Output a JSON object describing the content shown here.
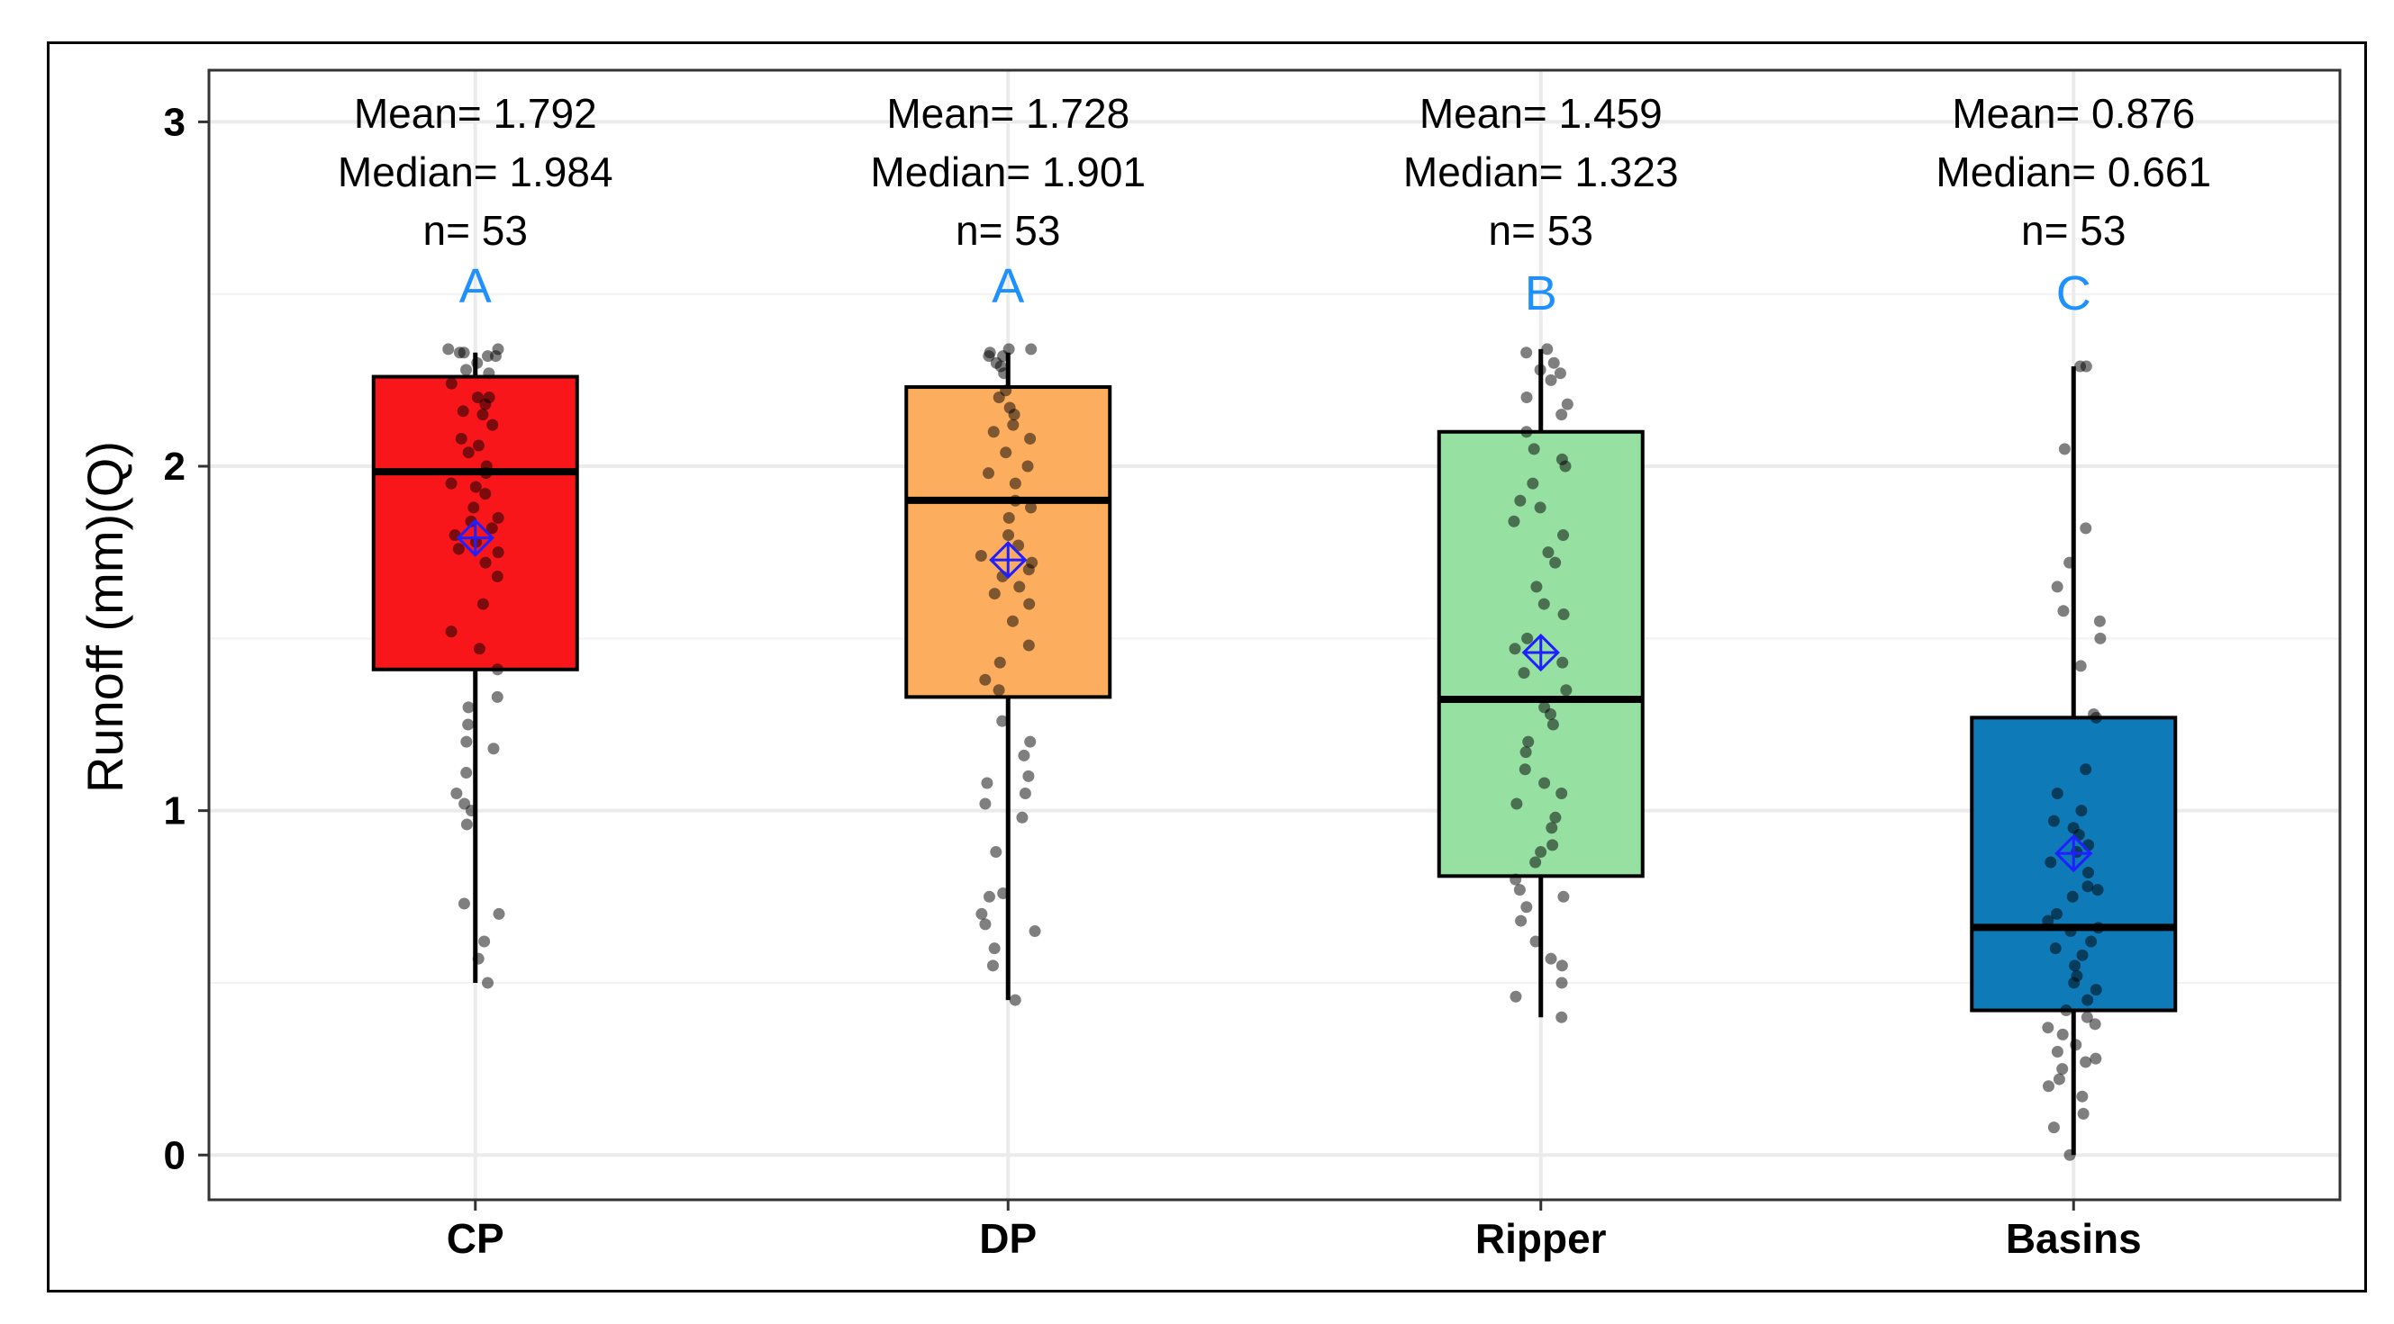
{
  "chart_data": {
    "type": "box",
    "title": "",
    "xlabel": "",
    "ylabel": "Runoff (mm)(Q)",
    "ylim": [
      -0.13,
      3.15
    ],
    "yticks": [
      0,
      1,
      2,
      3
    ],
    "ytick_labels": [
      "0",
      "1",
      "2",
      "3"
    ],
    "grid": true,
    "colors": {
      "mean_marker": "#1f1fff",
      "letters": "#1e90ff",
      "points": "#000000",
      "grid": "#ebebeb"
    },
    "groups": [
      {
        "name": "CP",
        "fill": "#f8161a",
        "q1": 1.41,
        "median": 1.984,
        "q3": 2.26,
        "whisker_low": 0.5,
        "whisker_high": 2.33,
        "mean": 1.792,
        "mean_text": "Mean= 1.792",
        "median_text": "Median= 1.984",
        "n_text": "n= 53",
        "letter": "A",
        "points": [
          2.34,
          2.34,
          2.33,
          2.33,
          2.32,
          2.3,
          2.28,
          2.27,
          2.2,
          2.2,
          2.18,
          2.15,
          2.12,
          2.08,
          2.04,
          2.0,
          1.98,
          1.95,
          1.92,
          1.88,
          1.85,
          1.82,
          1.8,
          1.78,
          1.75,
          1.72,
          1.6,
          1.47,
          1.41,
          1.33,
          1.3,
          1.2,
          1.18,
          1.11,
          1.05,
          1.02,
          1.0,
          0.73,
          0.7,
          0.57,
          0.5,
          2.32,
          2.24,
          2.16,
          2.06,
          1.94,
          1.84,
          1.76,
          1.68,
          1.52,
          1.25,
          0.96,
          0.62
        ]
      },
      {
        "name": "DP",
        "fill": "#fdad5e",
        "q1": 1.33,
        "median": 1.901,
        "q3": 2.23,
        "whisker_low": 0.45,
        "whisker_high": 2.33,
        "mean": 1.728,
        "mean_text": "Mean= 1.728",
        "median_text": "Median= 1.901",
        "n_text": "n= 53",
        "letter": "A",
        "points": [
          2.34,
          2.34,
          2.33,
          2.32,
          2.3,
          2.29,
          2.27,
          2.2,
          2.17,
          2.15,
          2.1,
          2.08,
          2.04,
          2.0,
          1.95,
          1.9,
          1.85,
          1.8,
          1.77,
          1.72,
          1.68,
          1.65,
          1.63,
          1.55,
          1.43,
          1.35,
          1.26,
          1.16,
          1.1,
          1.08,
          1.05,
          1.02,
          0.76,
          0.75,
          0.67,
          0.65,
          0.55,
          0.45,
          2.32,
          2.22,
          2.12,
          1.98,
          1.88,
          1.7,
          1.6,
          1.48,
          1.2,
          0.98,
          0.88,
          0.7,
          0.6,
          1.38,
          1.74
        ]
      },
      {
        "name": "Ripper",
        "fill": "#96e0a2",
        "q1": 0.81,
        "median": 1.323,
        "q3": 2.1,
        "whisker_low": 0.4,
        "whisker_high": 2.34,
        "mean": 1.459,
        "mean_text": "Mean= 1.459",
        "median_text": "Median= 1.323",
        "n_text": "n= 53",
        "letter": "B",
        "points": [
          2.34,
          2.33,
          2.3,
          2.28,
          2.25,
          2.2,
          2.15,
          2.1,
          2.05,
          2.02,
          1.9,
          1.88,
          1.84,
          1.8,
          1.75,
          1.57,
          1.47,
          1.43,
          1.4,
          1.35,
          1.3,
          1.28,
          1.2,
          1.17,
          1.12,
          1.08,
          1.02,
          0.98,
          0.95,
          0.9,
          0.88,
          0.8,
          0.77,
          0.75,
          0.68,
          0.57,
          0.55,
          0.46,
          0.4,
          2.27,
          2.18,
          2.0,
          1.72,
          1.65,
          1.5,
          1.25,
          1.05,
          0.85,
          0.72,
          0.62,
          0.5,
          1.6,
          1.95
        ]
      },
      {
        "name": "Basins",
        "fill": "#0f7ab8",
        "q1": 0.42,
        "median": 0.661,
        "q3": 1.27,
        "whisker_low": 0.0,
        "whisker_high": 2.29,
        "mean": 0.876,
        "mean_text": "Mean= 0.876",
        "median_text": "Median= 0.661",
        "n_text": "n= 53",
        "letter": "C",
        "points": [
          2.29,
          2.29,
          2.05,
          1.82,
          1.72,
          1.65,
          1.58,
          1.55,
          1.5,
          1.42,
          1.28,
          1.27,
          1.05,
          1.0,
          0.97,
          0.95,
          0.88,
          0.82,
          0.77,
          0.75,
          0.7,
          0.65,
          0.6,
          0.58,
          0.55,
          0.52,
          0.5,
          0.45,
          0.42,
          0.4,
          0.37,
          0.35,
          0.32,
          0.3,
          0.27,
          0.25,
          0.22,
          0.17,
          0.0,
          0.85,
          0.9,
          0.62,
          0.48,
          0.28,
          0.12,
          0.66,
          0.68,
          0.78,
          0.93,
          1.12,
          0.38,
          0.2,
          0.08
        ]
      }
    ]
  }
}
